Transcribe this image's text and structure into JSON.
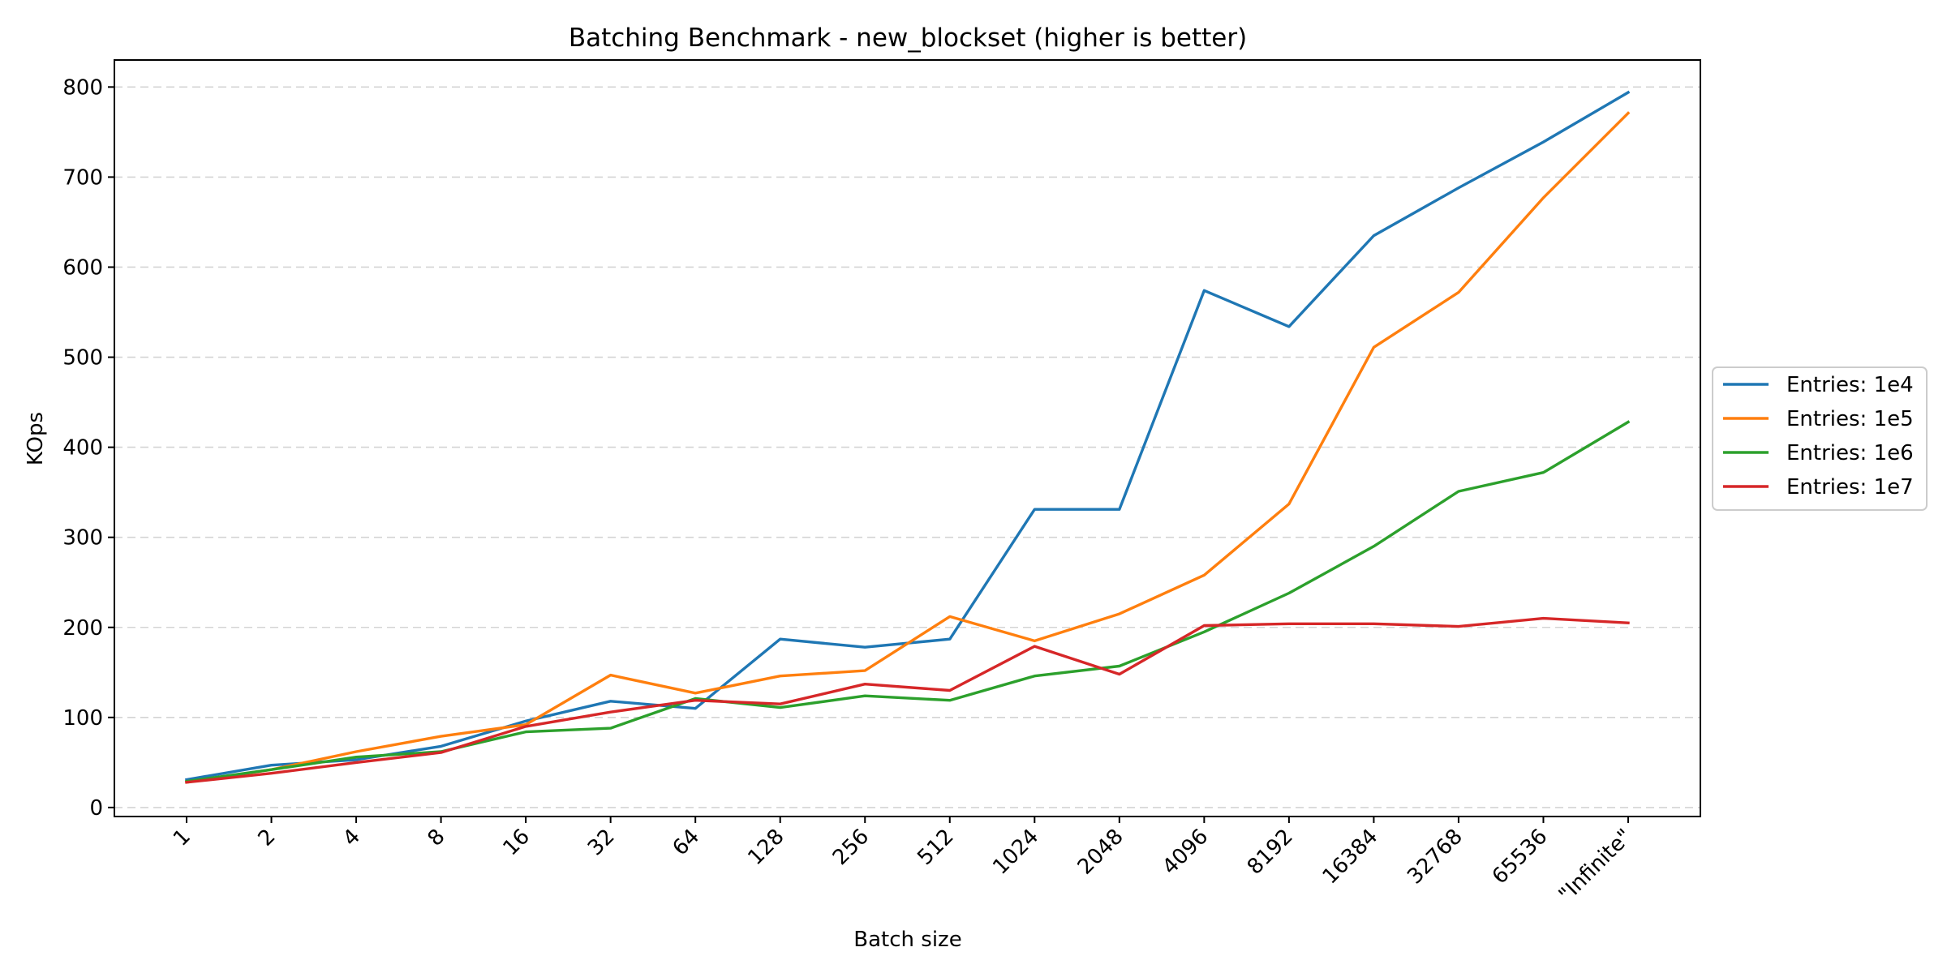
{
  "chart_data": {
    "type": "line",
    "title": "Batching Benchmark - new_blockset (higher is better)",
    "xlabel": "Batch size",
    "ylabel": "KOps",
    "categories": [
      "1",
      "2",
      "4",
      "8",
      "16",
      "32",
      "64",
      "128",
      "256",
      "512",
      "1024",
      "2048",
      "4096",
      "8192",
      "16384",
      "32768",
      "65536",
      "\"Infinite\""
    ],
    "ylim": [
      -10,
      830
    ],
    "yticks": [
      0,
      100,
      200,
      300,
      400,
      500,
      600,
      700,
      800
    ],
    "grid": "horizontal dashed",
    "legend_position": "outside-right",
    "series": [
      {
        "name": "Entries: 1e4",
        "color": "#1f77b4",
        "values": [
          31,
          47,
          53,
          68,
          96,
          118,
          110,
          187,
          178,
          187,
          331,
          331,
          574,
          534,
          635,
          688,
          739,
          794
        ]
      },
      {
        "name": "Entries: 1e5",
        "color": "#ff7f0e",
        "values": [
          28,
          42,
          62,
          79,
          92,
          147,
          127,
          146,
          152,
          212,
          185,
          215,
          258,
          337,
          511,
          572,
          677,
          771
        ]
      },
      {
        "name": "Entries: 1e6",
        "color": "#2ca02c",
        "values": [
          29,
          42,
          56,
          62,
          84,
          88,
          121,
          111,
          124,
          119,
          146,
          157,
          195,
          238,
          290,
          351,
          372,
          428
        ]
      },
      {
        "name": "Entries: 1e7",
        "color": "#d62728",
        "values": [
          28,
          38,
          50,
          61,
          90,
          106,
          119,
          115,
          137,
          130,
          179,
          148,
          202,
          204,
          204,
          201,
          210,
          205
        ]
      }
    ]
  }
}
